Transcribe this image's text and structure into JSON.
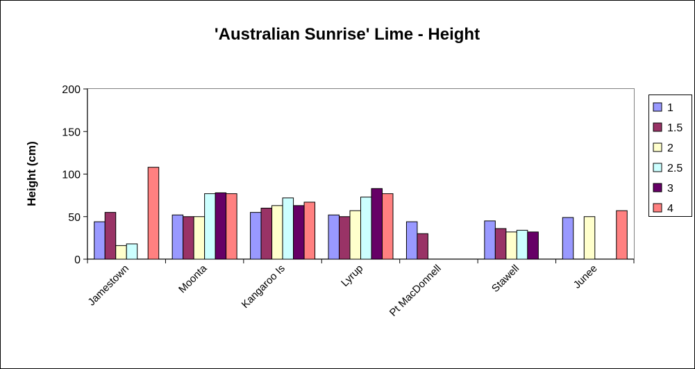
{
  "chart_data": {
    "type": "bar",
    "title": "'Australian Sunrise' Lime - Height",
    "xlabel": "",
    "ylabel": "Height (cm)",
    "ylim": [
      0,
      200
    ],
    "yticks": [
      0,
      50,
      100,
      150,
      200
    ],
    "grid": false,
    "legend_position": "right",
    "categories": [
      "Jamestown",
      "Moonta",
      "Kangaroo Is",
      "Lyrup",
      "Pt MacDonnell",
      "Stawell",
      "Junee"
    ],
    "series": [
      {
        "name": "1",
        "color": "#9999FF",
        "values": [
          44,
          52,
          55,
          52,
          44,
          45,
          49
        ]
      },
      {
        "name": "1.5",
        "color": "#993366",
        "values": [
          55,
          50,
          60,
          50,
          30,
          36,
          null
        ]
      },
      {
        "name": "2",
        "color": "#FFFFCC",
        "values": [
          16,
          50,
          63,
          57,
          null,
          32,
          50
        ]
      },
      {
        "name": "2.5",
        "color": "#CCFFFF",
        "values": [
          18,
          77,
          72,
          73,
          null,
          34,
          null
        ]
      },
      {
        "name": "3",
        "color": "#660066",
        "values": [
          null,
          78,
          63,
          83,
          null,
          32,
          null
        ]
      },
      {
        "name": "4",
        "color": "#FF8080",
        "values": [
          108,
          77,
          67,
          77,
          null,
          null,
          57
        ]
      }
    ]
  }
}
